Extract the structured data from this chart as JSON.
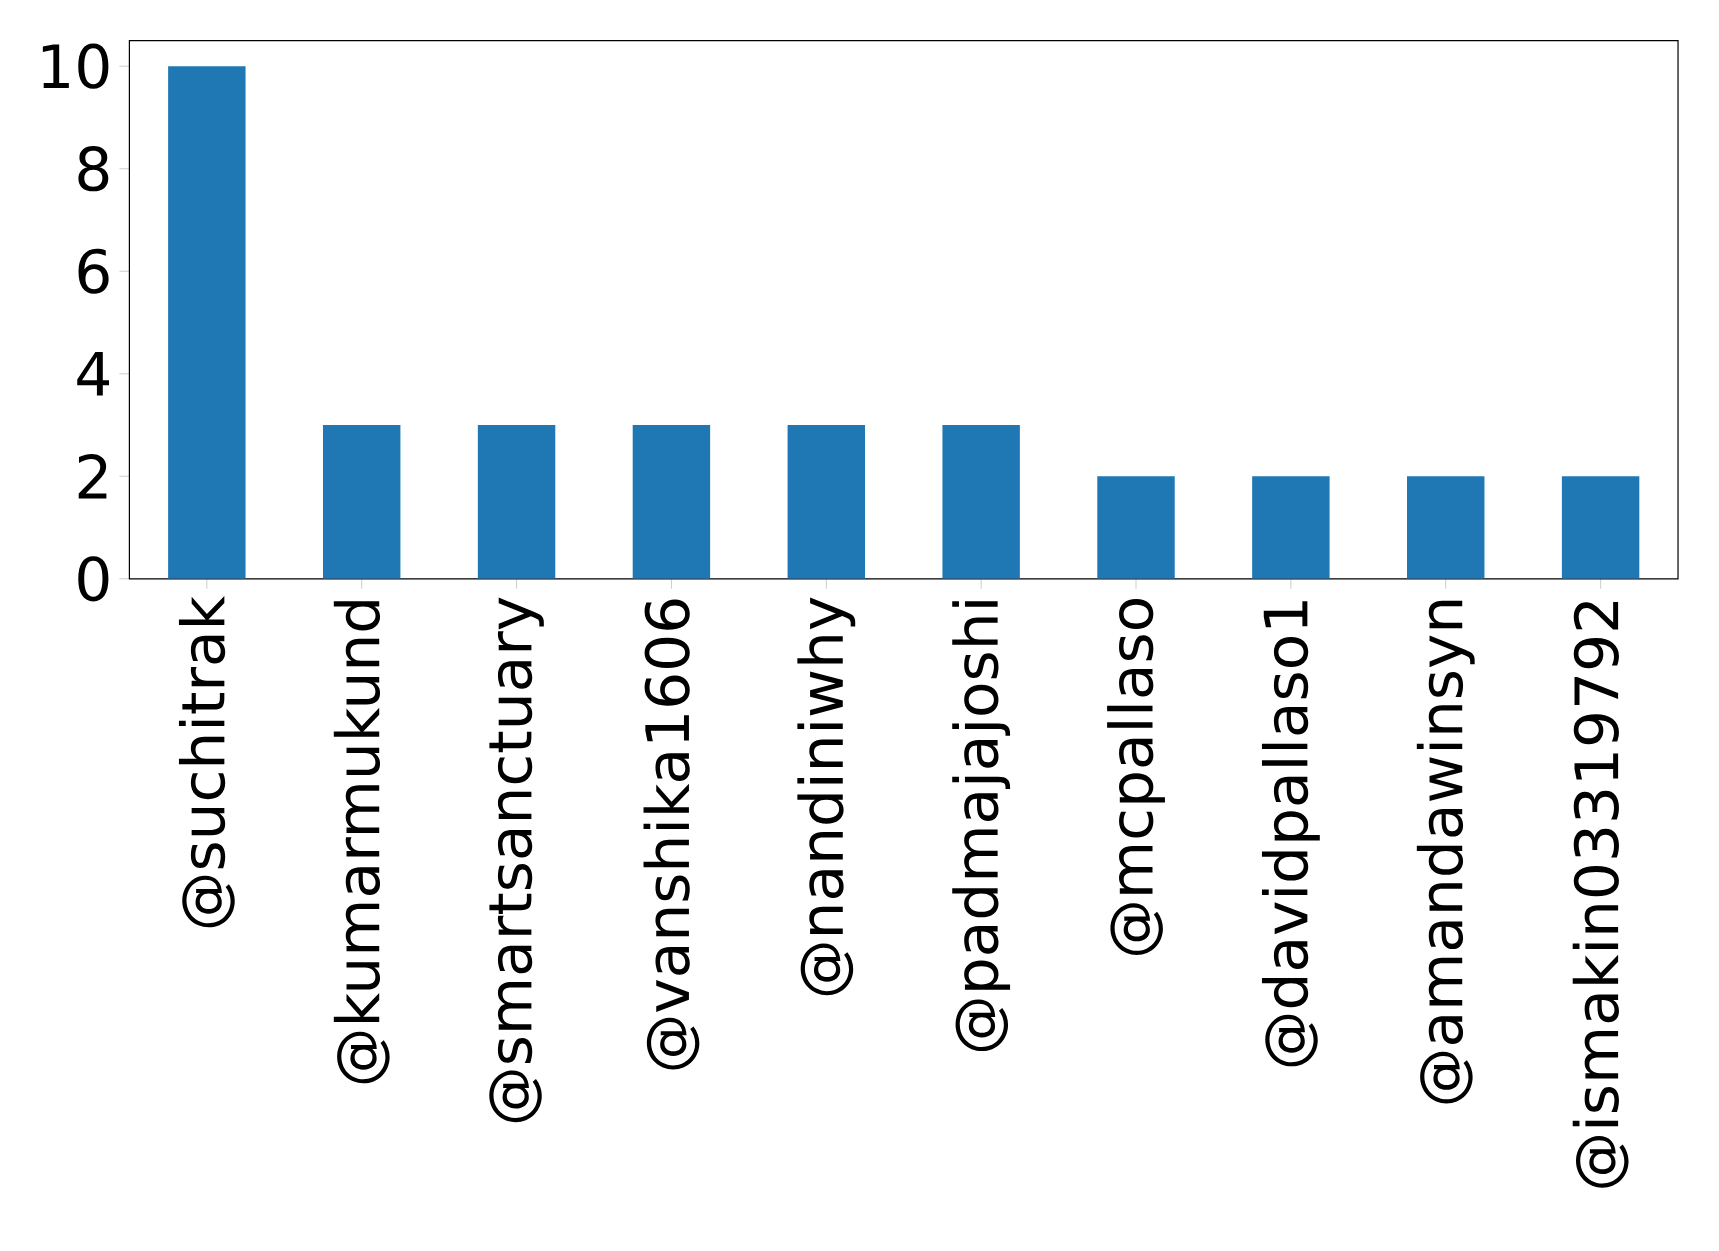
{
  "chart_data": {
    "type": "bar",
    "categories": [
      "@suchitrak",
      "@kumarmukund",
      "@smartsanctuary",
      "@vanshika1606",
      "@nandiniwhy",
      "@padmajajoshi",
      "@mcpallaso",
      "@davidpallaso1",
      "@amandawinsyn",
      "@ismakin03319792"
    ],
    "values": [
      10,
      3,
      3,
      3,
      3,
      3,
      2,
      2,
      2,
      2
    ],
    "color": "#1f77b4",
    "ylim": [
      0,
      10.5
    ],
    "yticks": [
      0,
      2,
      4,
      6,
      8,
      10
    ],
    "grid": false
  }
}
